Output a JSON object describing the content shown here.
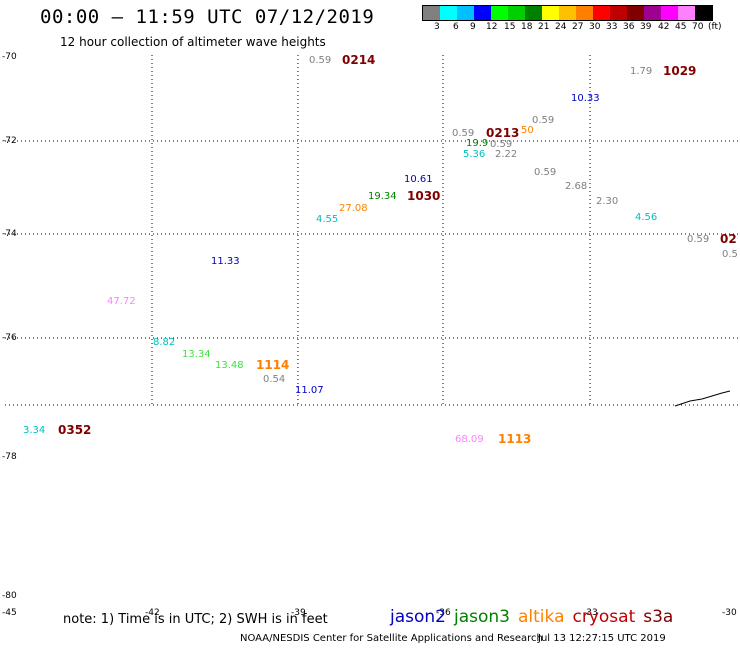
{
  "header": {
    "title": "00:00 – 11:59 UTC 07/12/2019",
    "subtitle": "12 hour collection of altimeter wave heights"
  },
  "legend": {
    "swatches": [
      "#808080",
      "#00ffff",
      "#00c0ff",
      "#0000ff",
      "#00ff00",
      "#00d000",
      "#008000",
      "#ffff00",
      "#ffc000",
      "#ff8000",
      "#ff0000",
      "#c00000",
      "#800000",
      "#a00090",
      "#ff00ff",
      "#ff80ff",
      "#000000"
    ],
    "labels": [
      "3",
      "6",
      "9",
      "12",
      "15",
      "18",
      "21",
      "24",
      "27",
      "30",
      "33",
      "36",
      "39",
      "42",
      "45",
      "70",
      "(ft)"
    ]
  },
  "axis": {
    "lat_labels": [
      "-70",
      "-72",
      "-74",
      "-76",
      "-78",
      "-80"
    ],
    "lon_labels": [
      "-45",
      "-42",
      "-39",
      "-36",
      "-33",
      "-30"
    ]
  },
  "observations": [
    {
      "text": "0.59",
      "color": "#808080"
    },
    {
      "text": "0214",
      "color": "#800000",
      "big": true
    },
    {
      "text": "1.79",
      "color": "#808080"
    },
    {
      "text": "1029",
      "color": "#800000",
      "big": true
    },
    {
      "text": "10.33",
      "color": "#0000c0"
    },
    {
      "text": "0.59",
      "color": "#808080"
    },
    {
      "text": "0.59",
      "color": "#808080"
    },
    {
      "text": "0213",
      "color": "#800000",
      "big": true
    },
    {
      "text": "19.9",
      "color": "#008000"
    },
    {
      "text": "0.59",
      "color": "#808080"
    },
    {
      "text": "50",
      "color": "#ff8000"
    },
    {
      "text": "5.36",
      "color": "#00c0c0"
    },
    {
      "text": "2.22",
      "color": "#808080"
    },
    {
      "text": "0.59",
      "color": "#808080"
    },
    {
      "text": "10.61",
      "color": "#0000c0"
    },
    {
      "text": "2.68",
      "color": "#808080"
    },
    {
      "text": "19.34",
      "color": "#008000"
    },
    {
      "text": "1030",
      "color": "#800000",
      "big": true
    },
    {
      "text": "2.30",
      "color": "#808080"
    },
    {
      "text": "27.08",
      "color": "#ff8000"
    },
    {
      "text": "4.55",
      "color": "#00c0c0"
    },
    {
      "text": "4.56",
      "color": "#00c0c0"
    },
    {
      "text": "0.59",
      "color": "#808080"
    },
    {
      "text": "02",
      "color": "#800000",
      "big": true
    },
    {
      "text": "0.5",
      "color": "#808080"
    },
    {
      "text": "11.33",
      "color": "#0000c0"
    },
    {
      "text": "47.72",
      "color": "#ff80ff"
    },
    {
      "text": "8.82",
      "color": "#00c0c0"
    },
    {
      "text": "13.34",
      "color": "#40e040"
    },
    {
      "text": "13.48",
      "color": "#40e040"
    },
    {
      "text": "1114",
      "color": "#ff8000",
      "big": true
    },
    {
      "text": "0.54",
      "color": "#808080"
    },
    {
      "text": "11.07",
      "color": "#0000c0"
    },
    {
      "text": "3.34",
      "color": "#00c0c0"
    },
    {
      "text": "0352",
      "color": "#800000",
      "big": true
    },
    {
      "text": "68.09",
      "color": "#ff80ff"
    },
    {
      "text": "1113",
      "color": "#ff8000",
      "big": true
    }
  ],
  "footer": {
    "note": "note: 1) Time is in UTC; 2) SWH is in feet",
    "missions": [
      {
        "name": "jason2",
        "color": "#0000c0"
      },
      {
        "name": "jason3",
        "color": "#008000"
      },
      {
        "name": "altika",
        "color": "#ff8000"
      },
      {
        "name": "cryosat",
        "color": "#c00000"
      },
      {
        "name": "s3a",
        "color": "#800000"
      }
    ],
    "credit": "NOAA/NESDIS Center for Satellite Applications and Research",
    "timestamp": "Jul 13 12:27:15 UTC 2019"
  }
}
